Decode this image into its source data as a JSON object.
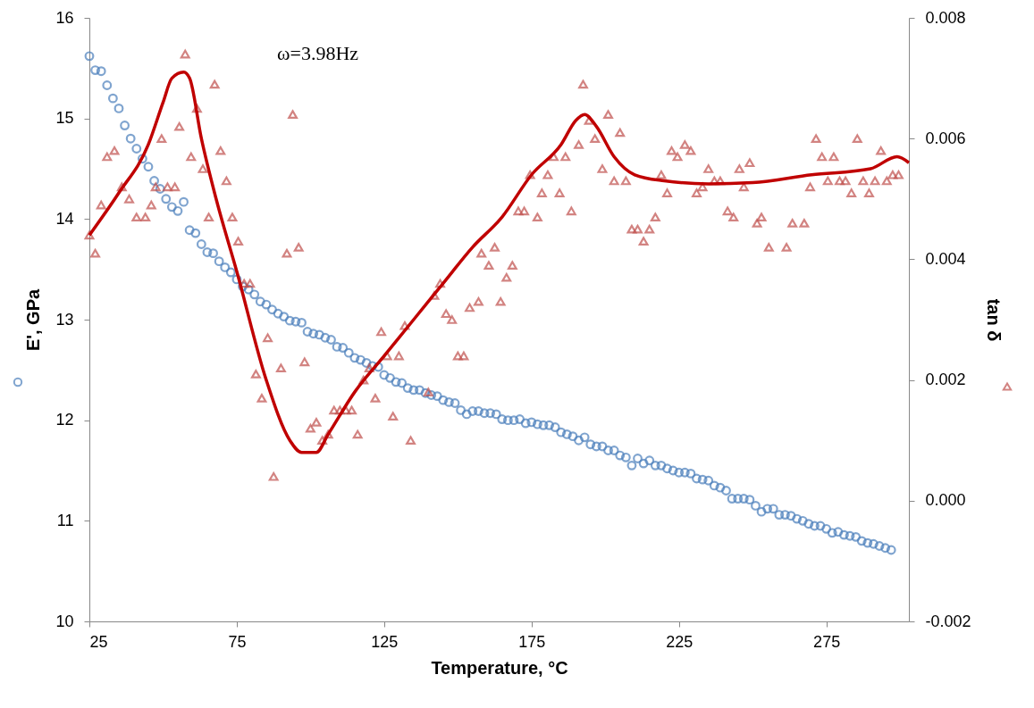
{
  "chart_data": {
    "type": "scatter",
    "xlabel": "Temperature, °C",
    "ylabel": "E', GPa",
    "y2label": "tan δ",
    "annotations": [
      "ω=3.98Hz"
    ],
    "xlim": [
      25,
      303
    ],
    "xticks": [
      25,
      75,
      125,
      175,
      225,
      275
    ],
    "ylim": [
      10,
      16
    ],
    "yticks": [
      10,
      11,
      12,
      13,
      14,
      15,
      16
    ],
    "y2lim": [
      -0.002,
      0.008
    ],
    "y2ticks": [
      {
        "value": -0.002,
        "label": "-0.002"
      },
      {
        "value": 0,
        "label": "0.000"
      },
      {
        "value": 0.002,
        "label": "0.002"
      },
      {
        "value": 0.004,
        "label": "0.004"
      },
      {
        "value": 0.006,
        "label": "0.006"
      },
      {
        "value": 0.008,
        "label": "0.008"
      }
    ],
    "series": [
      {
        "color": "#4a7ebb",
        "marker": "circle",
        "x": [
          25,
          27,
          29,
          31,
          33,
          35,
          37,
          39,
          41,
          43,
          45,
          47,
          49,
          51,
          53,
          55,
          57,
          59,
          61,
          63,
          65,
          67,
          69,
          71,
          73,
          75,
          77,
          79,
          81,
          83,
          85,
          87,
          89,
          91,
          93,
          95,
          97,
          99,
          101,
          103,
          105,
          107,
          109,
          111,
          113,
          115,
          117,
          119,
          121,
          123,
          125,
          127,
          129,
          131,
          133,
          135,
          137,
          139,
          141,
          143,
          145,
          147,
          149,
          151,
          153,
          155,
          157,
          159,
          161,
          163,
          165,
          167,
          169,
          171,
          173,
          175,
          177,
          179,
          181,
          183,
          185,
          187,
          189,
          191,
          193,
          195,
          197,
          199,
          201,
          203,
          205,
          207,
          209,
          211,
          213,
          215,
          217,
          219,
          221,
          223,
          225,
          227,
          229,
          231,
          233,
          235,
          237,
          239,
          241,
          243,
          245,
          247,
          249,
          251,
          253,
          255,
          257,
          259,
          261,
          263,
          265,
          267,
          269,
          271,
          273,
          275,
          277,
          279,
          281,
          283,
          285,
          287,
          289,
          291,
          293,
          295,
          297
        ],
        "values": [
          15.62,
          15.48,
          15.47,
          15.33,
          15.2,
          15.1,
          14.93,
          14.8,
          14.7,
          14.6,
          14.52,
          14.38,
          14.3,
          14.2,
          14.12,
          14.08,
          14.17,
          13.89,
          13.86,
          13.75,
          13.67,
          13.66,
          13.58,
          13.52,
          13.47,
          13.4,
          13.33,
          13.3,
          13.25,
          13.18,
          13.15,
          13.1,
          13.06,
          13.03,
          12.99,
          12.98,
          12.97,
          12.88,
          12.86,
          12.85,
          12.82,
          12.8,
          12.73,
          12.72,
          12.67,
          12.62,
          12.6,
          12.57,
          12.54,
          12.53,
          12.45,
          12.42,
          12.38,
          12.37,
          12.32,
          12.3,
          12.3,
          12.27,
          12.25,
          12.24,
          12.2,
          12.18,
          12.17,
          12.1,
          12.06,
          12.09,
          12.09,
          12.07,
          12.07,
          12.06,
          12.01,
          12.0,
          12.0,
          12.01,
          11.97,
          11.98,
          11.96,
          11.95,
          11.95,
          11.93,
          11.88,
          11.86,
          11.84,
          11.8,
          11.83,
          11.76,
          11.74,
          11.74,
          11.7,
          11.7,
          11.65,
          11.63,
          11.55,
          11.62,
          11.57,
          11.6,
          11.55,
          11.55,
          11.52,
          11.5,
          11.48,
          11.48,
          11.47,
          11.42,
          11.41,
          11.4,
          11.35,
          11.33,
          11.3,
          11.22,
          11.22,
          11.22,
          11.21,
          11.15,
          11.09,
          11.12,
          11.12,
          11.06,
          11.06,
          11.05,
          11.02,
          11.0,
          10.97,
          10.95,
          10.95,
          10.92,
          10.88,
          10.89,
          10.86,
          10.85,
          10.84,
          10.8,
          10.78,
          10.77,
          10.75,
          10.73,
          10.71
        ]
      },
      {
        "color": "#c0504d",
        "marker": "triangle",
        "axis": "y2",
        "x": [
          25,
          27,
          29,
          31,
          33.5,
          36,
          38.5,
          41,
          44,
          46,
          47.5,
          49.5,
          51.5,
          54,
          55.5,
          57.5,
          59.5,
          61.5,
          63.5,
          65.5,
          67.5,
          69.5,
          71.5,
          73.5,
          75.5,
          77.5,
          79.5,
          81.5,
          83.5,
          85.5,
          87.5,
          90,
          92,
          94,
          96,
          98,
          100,
          102,
          104,
          106,
          108,
          110,
          112,
          114,
          116,
          118,
          120,
          122,
          124,
          126,
          128,
          130,
          132,
          134,
          140,
          142,
          144,
          146,
          148,
          150,
          152,
          154,
          157,
          158,
          160.5,
          162.5,
          164.5,
          166.5,
          168.5,
          170.5,
          172.5,
          174.5,
          177,
          178.5,
          180.5,
          182.5,
          184.5,
          186.5,
          188.5,
          191,
          192.5,
          194.5,
          196.5,
          199,
          201,
          203,
          205,
          207,
          209,
          211,
          213,
          215,
          217,
          219,
          221,
          222.5,
          224.5,
          227,
          229,
          231,
          233,
          235,
          237,
          239,
          241.5,
          243.5,
          245.5,
          247,
          249,
          251.5,
          253,
          255.5,
          261.5,
          263.5,
          267.5,
          269.5,
          271.5,
          273.5,
          275.5,
          277.5,
          279.5,
          281.5,
          283.5,
          285.5,
          287.5,
          289.5,
          291.5,
          293.5,
          295.5,
          297.5,
          299.5
        ],
        "values": [
          0.0044,
          0.0041,
          0.0049,
          0.0057,
          0.0058,
          0.0052,
          0.005,
          0.0047,
          0.0047,
          0.0049,
          0.0052,
          0.006,
          0.0052,
          0.0052,
          0.0062,
          0.0074,
          0.0057,
          0.0065,
          0.0055,
          0.0047,
          0.0069,
          0.0058,
          0.0053,
          0.0047,
          0.0043,
          0.0036,
          0.0036,
          0.0021,
          0.0017,
          0.0027,
          0.0004,
          0.0022,
          0.0041,
          0.0064,
          0.0042,
          0.0023,
          0.0012,
          0.0013,
          0.001,
          0.0011,
          0.0015,
          0.0015,
          0.0015,
          0.0015,
          0.0011,
          0.002,
          0.0022,
          0.0017,
          0.0028,
          0.0024,
          0.0014,
          0.0024,
          0.0029,
          0.001,
          0.0018,
          0.0034,
          0.0036,
          0.0031,
          0.003,
          0.0024,
          0.0024,
          0.0032,
          0.0033,
          0.0041,
          0.0039,
          0.0042,
          0.0033,
          0.0037,
          0.0039,
          0.0048,
          0.0048,
          0.0054,
          0.0047,
          0.0051,
          0.0054,
          0.0057,
          0.0051,
          0.0057,
          0.0048,
          0.0059,
          0.0069,
          0.0063,
          0.006,
          0.0055,
          0.0064,
          0.0053,
          0.0061,
          0.0053,
          0.0045,
          0.0045,
          0.0043,
          0.0045,
          0.0047,
          0.0054,
          0.0051,
          0.0058,
          0.0057,
          0.0059,
          0.0058,
          0.0051,
          0.0052,
          0.0055,
          0.0053,
          0.0053,
          0.0048,
          0.0047,
          0.0055,
          0.0052,
          0.0056,
          0.0046,
          0.0047,
          0.0042,
          0.0042,
          0.0046,
          0.0046,
          0.0052,
          0.006,
          0.0057,
          0.0053,
          0.0057,
          0.0053,
          0.0053,
          0.0051,
          0.006,
          0.0053,
          0.0051,
          0.0053,
          0.0058,
          0.0053,
          0.0054,
          0.0054
        ]
      },
      {
        "type": "line",
        "color": "#c00000",
        "axis": "y2",
        "x": [
          25,
          35,
          45,
          50,
          53,
          57,
          59,
          63,
          68,
          75,
          85,
          93,
          97,
          102,
          106,
          115,
          125,
          135,
          145,
          155,
          165,
          175,
          185,
          190,
          193,
          197,
          203,
          210,
          220,
          235,
          250,
          270,
          290,
          299,
          303
        ],
        "values": [
          0.0044,
          0.0051,
          0.0059,
          0.0066,
          0.007,
          0.0071,
          0.007,
          0.006,
          0.005,
          0.0038,
          0.002,
          0.001,
          0.0008,
          0.0008,
          0.0011,
          0.0018,
          0.0024,
          0.003,
          0.0036,
          0.0042,
          0.0047,
          0.0054,
          0.0059,
          0.0063,
          0.0064,
          0.0062,
          0.0057,
          0.0054,
          0.0053,
          0.00525,
          0.00527,
          0.0054,
          0.0055,
          0.0057,
          0.0056
        ]
      }
    ]
  }
}
